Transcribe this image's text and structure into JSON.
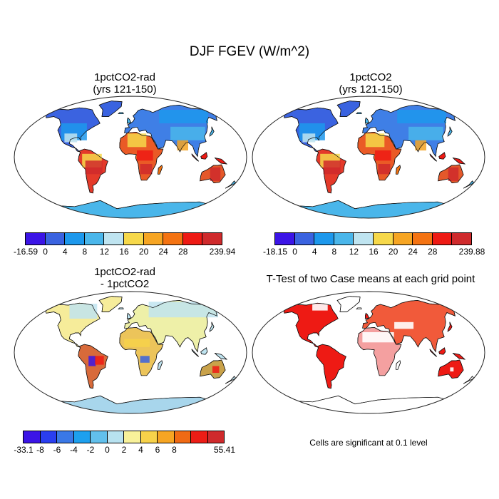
{
  "figure": {
    "title": "DJF FGEV (W/m^2)",
    "note": "Cells are significant at 0.1 level"
  },
  "panels": [
    {
      "title_line1": "1pctCO2-rad",
      "title_line2": "(yrs 121-150)"
    },
    {
      "title_line1": "1pctCO2",
      "title_line2": "(yrs 121-150)"
    },
    {
      "title_line1": "1pctCO2-rad",
      "title_line2": "- 1pctCO2"
    },
    {
      "title_line1": "T-Test of two Case means at each grid point",
      "title_line2": ""
    }
  ],
  "colorbars": [
    {
      "labels": [
        "-16.59",
        "0",
        "4",
        "8",
        "12",
        "16",
        "20",
        "24",
        "28",
        "239.94"
      ],
      "colors": [
        "#3b14e6",
        "#3a63e0",
        "#1d98ec",
        "#4ab6ea",
        "#bfe4f0",
        "#f6d84a",
        "#f6a523",
        "#f47312",
        "#ee1a14",
        "#cf2a2c"
      ]
    },
    {
      "labels": [
        "-18.15",
        "0",
        "4",
        "8",
        "12",
        "16",
        "20",
        "24",
        "28",
        "239.88"
      ],
      "colors": [
        "#3b14e6",
        "#3a63e0",
        "#1d98ec",
        "#4ab6ea",
        "#bfe4f0",
        "#f6d84a",
        "#f6a523",
        "#f47312",
        "#ee1a14",
        "#cf2a2c"
      ]
    },
    {
      "labels": [
        "-33.1",
        "-8",
        "-6",
        "-4",
        "-2",
        "0",
        "2",
        "4",
        "6",
        "8",
        "55.41"
      ],
      "colors": [
        "#3b14e6",
        "#2a3ef0",
        "#3a78e6",
        "#1da0ee",
        "#62c0ec",
        "#b8e2f0",
        "#f8f19a",
        "#f7d24a",
        "#f6a523",
        "#f06a14",
        "#ec1d16",
        "#cf2a2c"
      ]
    }
  ]
}
